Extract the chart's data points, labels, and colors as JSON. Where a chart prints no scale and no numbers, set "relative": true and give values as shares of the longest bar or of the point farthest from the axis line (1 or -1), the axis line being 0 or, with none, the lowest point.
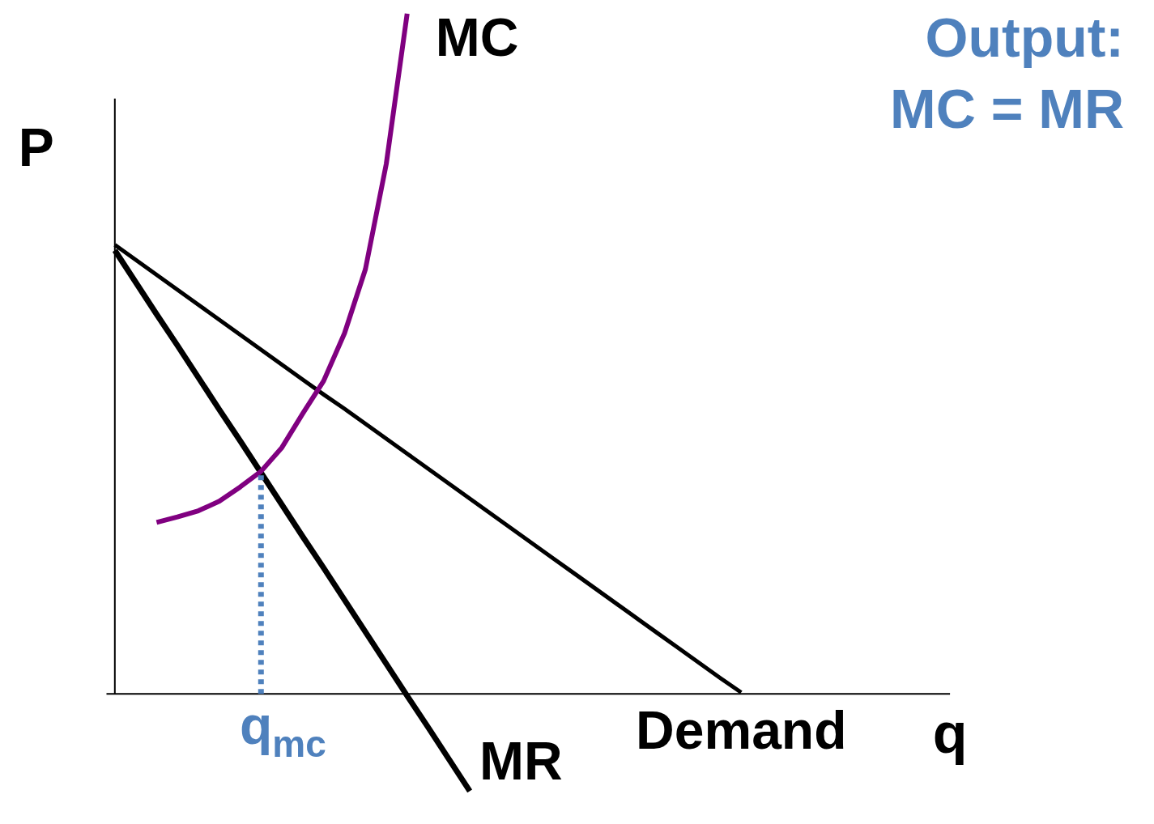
{
  "chart_data": {
    "type": "line",
    "relative": true,
    "xlabel": "q",
    "ylabel": "P",
    "annotations": [
      "Output:",
      "MC = MR",
      {
        "text": "q$_{mc}$"
      }
    ],
    "categories": [
      null,
      null,
      null,
      null,
      null,
      null,
      null,
      null,
      null,
      null,
      null,
      null,
      null,
      null,
      null,
      null,
      null,
      null,
      null,
      null,
      null,
      null,
      null,
      null,
      null,
      null,
      null,
      null,
      null,
      null,
      null,
      null,
      null,
      null,
      null,
      null,
      null,
      null,
      null,
      null,
      null
    ],
    "series": [
      {
        "name": "Demand",
        "color": "#000000",
        "values": [
          0.66,
          0.638,
          0.616,
          0.594,
          0.572,
          0.55,
          0.528,
          0.506,
          0.484,
          0.462,
          0.44,
          0.419,
          0.397,
          0.375,
          0.353,
          0.331,
          0.309,
          0.287,
          0.265,
          0.243,
          0.221,
          0.199,
          0.177,
          0.155,
          0.133,
          0.111,
          0.089,
          0.067,
          0.045,
          0.023,
          0.002,
          null,
          null,
          null,
          null,
          null,
          null,
          null,
          null,
          null,
          null
        ]
      },
      {
        "name": "MR",
        "color": "#000000",
        "values": [
          0.652,
          0.605,
          0.558,
          0.512,
          0.465,
          0.418,
          0.372,
          0.325,
          0.278,
          0.231,
          0.185,
          0.138,
          0.091,
          0.044,
          -0.003,
          -0.049,
          -0.096,
          -0.143,
          null,
          null,
          null,
          null,
          null,
          null,
          null,
          null,
          null,
          null,
          null,
          null,
          null,
          null,
          null,
          null,
          null,
          null,
          null,
          null,
          null,
          null,
          null
        ]
      },
      {
        "name": "MC",
        "color": "#800080",
        "values": [
          null,
          null,
          0.252,
          0.26,
          0.269,
          0.283,
          0.304,
          0.327,
          0.362,
          0.412,
          0.46,
          0.53,
          0.624,
          0.779,
          1.0,
          null,
          null,
          null,
          null,
          null,
          null,
          null,
          null,
          null,
          null,
          null,
          null,
          null,
          null,
          null,
          null,
          null,
          null,
          null,
          null,
          null,
          null,
          null,
          null,
          null,
          null
        ]
      }
    ],
    "marker": "none",
    "line_style": "solid"
  }
}
